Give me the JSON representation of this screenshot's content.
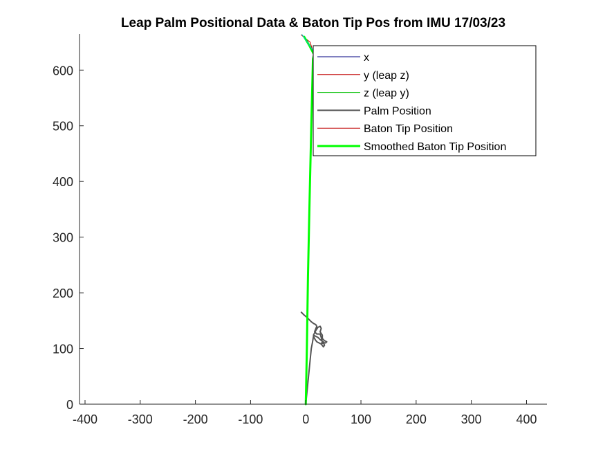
{
  "chart_data": {
    "type": "line",
    "title": "Leap Palm Positional Data & Baton Tip Pos from IMU 17/03/23",
    "xlabel": "",
    "ylabel": "",
    "xlim": [
      -410,
      437
    ],
    "ylim": [
      0,
      665
    ],
    "xticks": [
      -400,
      -300,
      -200,
      -100,
      0,
      100,
      200,
      300,
      400
    ],
    "xtick_labels": [
      "-400",
      "-300",
      "-200",
      "-100",
      "0",
      "100",
      "200",
      "300",
      "400"
    ],
    "yticks": [
      0,
      100,
      200,
      300,
      400,
      500,
      600
    ],
    "ytick_labels": [
      "0",
      "100",
      "200",
      "300",
      "400",
      "500",
      "600"
    ],
    "grid": false,
    "legend_position": "top-right",
    "series": [
      {
        "name": "x",
        "color": "#0000ff",
        "width": 1,
        "points": [
          [
            0,
            0
          ],
          [
            18,
            0
          ]
        ]
      },
      {
        "name": "y (leap z)",
        "color": "#ff0000",
        "width": 1,
        "points": [
          [
            0,
            0
          ],
          [
            0,
            0
          ]
        ]
      },
      {
        "name": "z (leap y)",
        "color": "#00ff00",
        "width": 1,
        "points": [
          [
            0,
            0
          ],
          [
            0,
            0
          ]
        ]
      },
      {
        "name": "Palm Position",
        "color": "#555555",
        "width": 2,
        "points": [
          [
            -8,
            165
          ],
          [
            -4,
            161
          ],
          [
            2,
            156
          ],
          [
            6,
            152
          ],
          [
            10,
            148
          ],
          [
            14,
            145
          ],
          [
            18,
            143
          ],
          [
            20,
            140
          ],
          [
            18,
            135
          ],
          [
            16,
            130
          ],
          [
            20,
            126
          ],
          [
            26,
            126
          ],
          [
            28,
            120
          ],
          [
            30,
            112
          ],
          [
            28,
            108
          ],
          [
            32,
            103
          ],
          [
            34,
            106
          ],
          [
            32,
            110
          ],
          [
            36,
            110
          ],
          [
            38,
            112
          ],
          [
            34,
            114
          ],
          [
            30,
            118
          ],
          [
            30,
            124
          ],
          [
            26,
            130
          ],
          [
            28,
            136
          ],
          [
            26,
            140
          ],
          [
            22,
            138
          ],
          [
            18,
            132
          ],
          [
            14,
            124
          ],
          [
            22,
            120
          ],
          [
            26,
            116
          ],
          [
            30,
            113
          ],
          [
            33,
            111
          ],
          [
            28,
            108
          ],
          [
            24,
            110
          ],
          [
            20,
            112
          ],
          [
            17,
            116
          ],
          [
            14,
            122
          ],
          [
            12,
            110
          ],
          [
            10,
            100
          ],
          [
            8,
            80
          ],
          [
            4,
            40
          ],
          [
            0,
            0
          ]
        ]
      },
      {
        "name": "Baton Tip Position",
        "color": "#cc0000",
        "width": 1,
        "points": [
          [
            0,
            0
          ],
          [
            3,
            180
          ],
          [
            6,
            350
          ],
          [
            10,
            500
          ],
          [
            14,
            630
          ],
          [
            8,
            650
          ],
          [
            -8,
            663
          ]
        ]
      },
      {
        "name": "Smoothed Baton Tip Position",
        "color": "#00ff00",
        "width": 3,
        "points": [
          [
            0,
            0
          ],
          [
            2,
            100
          ],
          [
            4,
            230
          ],
          [
            7,
            370
          ],
          [
            10,
            500
          ],
          [
            13,
            620
          ],
          [
            15,
            628
          ],
          [
            6,
            645
          ],
          [
            -3,
            660
          ]
        ]
      },
      {
        "name": "",
        "color": "#00c0c0",
        "width": 1,
        "points": [
          [
            -7,
            664
          ],
          [
            3,
            650
          ],
          [
            9,
            641
          ],
          [
            14,
            634
          ]
        ]
      }
    ]
  },
  "legend": {
    "items": [
      {
        "label": "x",
        "color": "#000080",
        "width": 1
      },
      {
        "label": "y (leap z)",
        "color": "#c00000",
        "width": 1
      },
      {
        "label": "z (leap y)",
        "color": "#00c000",
        "width": 1
      },
      {
        "label": "Palm Position",
        "color": "#555555",
        "width": 2
      },
      {
        "label": "Baton Tip Position",
        "color": "#c00000",
        "width": 1
      },
      {
        "label": "Smoothed Baton Tip Position",
        "color": "#00ff00",
        "width": 3
      }
    ]
  }
}
